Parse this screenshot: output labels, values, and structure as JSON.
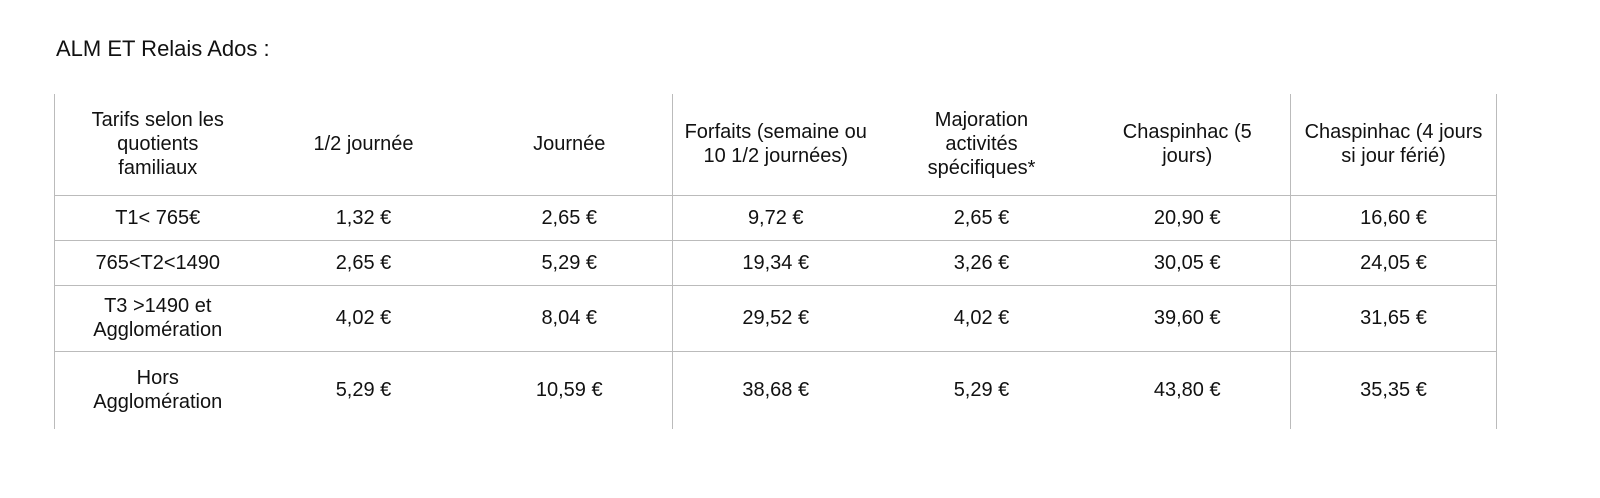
{
  "title": "ALM ET Relais Ados :",
  "table": {
    "headers": [
      "Tarifs selon les quotients familiaux",
      "1/2 journée",
      "Journée",
      "Forfaits (semaine ou 10 1/2 journées)",
      "Majoration activités spécifiques*",
      "Chaspinhac (5 jours)",
      "Chaspinhac (4 jours si jour férié)"
    ],
    "rows": [
      [
        "T1< 765€",
        "1,32 €",
        "2,65 €",
        "9,72 €",
        "2,65 €",
        "20,90 €",
        "16,60 €"
      ],
      [
        "765<T2<1490",
        "2,65 €",
        "5,29 €",
        "19,34 €",
        "3,26 €",
        "30,05 €",
        "24,05 €"
      ],
      [
        "T3 >1490 et Agglomération",
        "4,02 €",
        "8,04 €",
        "29,52 €",
        "4,02 €",
        "39,60 €",
        "31,65 €"
      ],
      [
        "Hors Agglomération",
        "5,29 €",
        "10,59 €",
        "38,68 €",
        "5,29 €",
        "43,80 €",
        "35,35 €"
      ]
    ]
  }
}
